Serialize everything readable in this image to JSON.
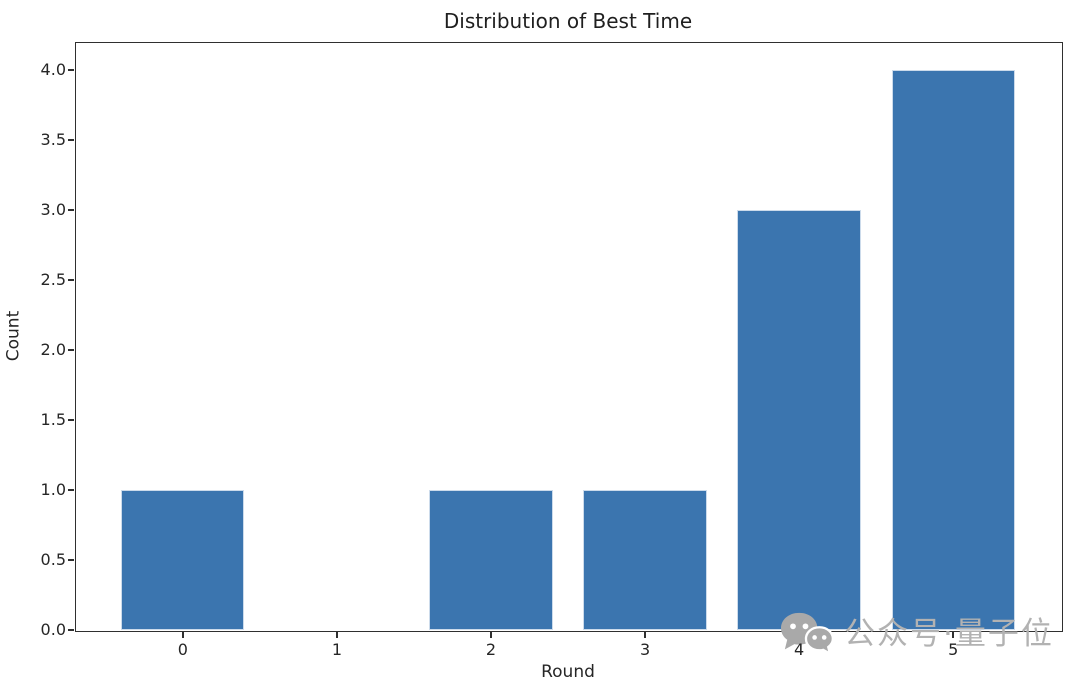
{
  "chart_data": {
    "type": "bar",
    "categories": [
      "0",
      "1",
      "2",
      "3",
      "4",
      "5"
    ],
    "values": [
      1,
      0,
      1,
      1,
      3,
      4
    ],
    "title": "Distribution of Best Time",
    "xlabel": "Round",
    "ylabel": "Count",
    "xlim": [
      -0.7,
      5.7
    ],
    "ylim": [
      0,
      4.2
    ],
    "yticks": [
      0,
      0.5,
      1,
      1.5,
      2,
      2.5,
      3,
      3.5,
      4
    ],
    "ytick_labels": [
      "0.0",
      "0.5",
      "1.0",
      "1.5",
      "2.0",
      "2.5",
      "3.0",
      "3.5",
      "4.0"
    ],
    "bar_width": 0.8,
    "bar_color": "#3b75af",
    "grid": false,
    "legend": "none",
    "background": "#ffffff",
    "spine_color": "#2f2f2f"
  },
  "watermark": {
    "text": "公众号·量子位",
    "color": "#b2b2b2",
    "icon": "wechat-chat-bubbles-icon",
    "icon_color": "#a9a9a9"
  }
}
